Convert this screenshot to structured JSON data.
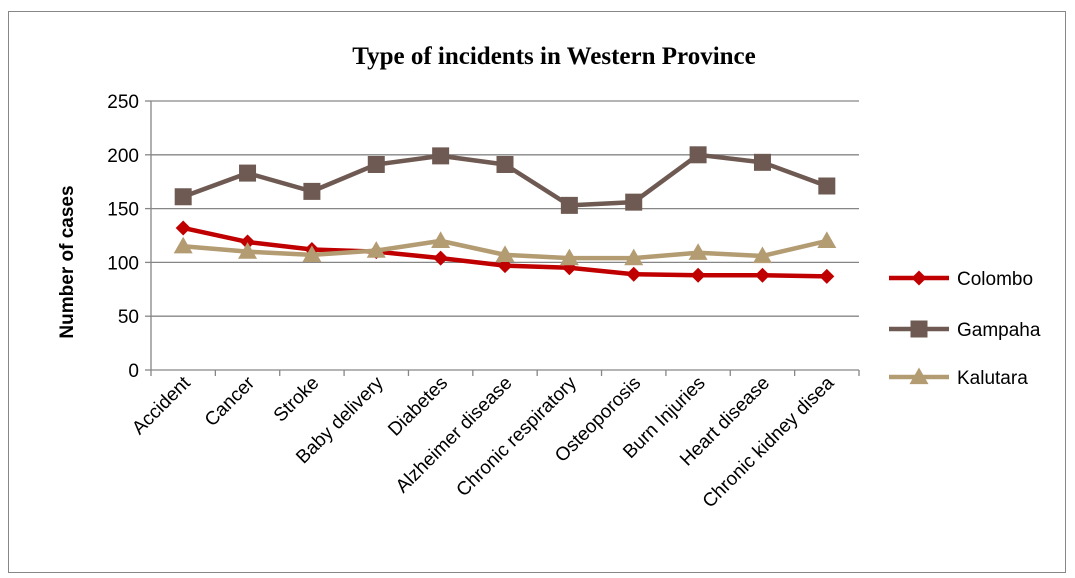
{
  "chart_data": {
    "type": "line",
    "title": "Type of incidents in Western Province",
    "xlabel": "",
    "ylabel": "Number of cases",
    "ylim": [
      0,
      250
    ],
    "yticks": [
      0,
      50,
      100,
      150,
      200,
      250
    ],
    "grid": true,
    "legend_position": "right",
    "categories": [
      "Accident",
      "Cancer",
      "Stroke",
      "Baby delivery",
      "Diabetes",
      "Alzheimer disease",
      "Chronic respiratory",
      "Osteoporosis",
      "Burn Injuries",
      "Heart disease",
      "Chronic kidney disea"
    ],
    "series": [
      {
        "name": "Colombo",
        "color": "#c00000",
        "marker": "diamond",
        "values": [
          132,
          119,
          112,
          110,
          104,
          97,
          95,
          89,
          88,
          88,
          87
        ]
      },
      {
        "name": "Gampaha",
        "color": "#6e5a52",
        "marker": "square",
        "values": [
          161,
          183,
          166,
          191,
          199,
          191,
          153,
          156,
          200,
          193,
          171
        ]
      },
      {
        "name": "Kalutara",
        "color": "#b39b72",
        "marker": "triangle",
        "values": [
          115,
          110,
          107,
          111,
          120,
          107,
          104,
          104,
          109,
          106,
          120
        ]
      }
    ]
  }
}
